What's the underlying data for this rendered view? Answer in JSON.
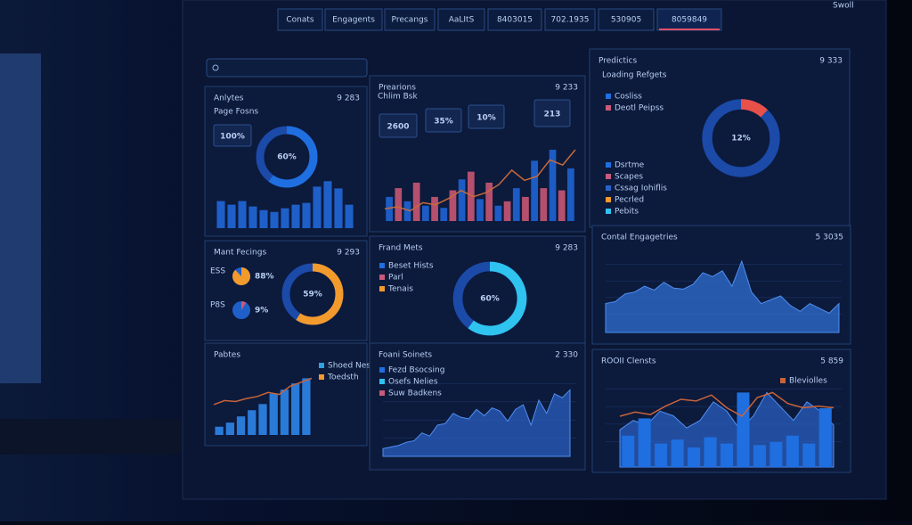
{
  "nav": [
    "Conats",
    "Engagents",
    "Precangs",
    "AaLItS",
    "8403015",
    "702.1935",
    "530905",
    "8059849"
  ],
  "corner": "Swoll",
  "panels": [
    {
      "title": "Anlytes",
      "badge": "9 283",
      "widgets": [
        {
          "type": "text",
          "text": "Page Fosns"
        },
        {
          "type": "stat",
          "text": "100%"
        },
        {
          "type": "donut",
          "value": 60,
          "label": "60%",
          "color": "#1f6fe0"
        },
        {
          "type": "bars",
          "values": [
            30,
            26,
            30,
            24,
            20,
            18,
            22,
            26,
            28,
            46,
            52,
            44,
            26
          ],
          "colors": [
            "#1f5fc8"
          ]
        }
      ]
    },
    {
      "title": "Prearions",
      "badge": "9 233",
      "widgets": [
        {
          "type": "text",
          "text": "Chlim Bsk"
        },
        {
          "type": "stat",
          "text": "2600"
        },
        {
          "type": "stat",
          "text": "35%"
        },
        {
          "type": "stat",
          "text": "10%"
        },
        {
          "type": "stat",
          "text": "213"
        },
        {
          "type": "bars",
          "values": [
            22,
            30,
            18,
            35,
            14,
            22,
            12,
            28,
            38,
            45,
            20,
            35,
            14,
            18,
            30,
            22,
            55,
            30,
            65,
            28,
            48
          ],
          "colors": [
            "#1c5cc4",
            "#b4506e"
          ]
        },
        {
          "type": "line",
          "values": [
            12,
            14,
            10,
            18,
            16,
            22,
            30,
            24,
            28,
            36,
            50,
            40,
            44,
            60,
            55,
            70
          ],
          "color": "#c86a3a"
        }
      ]
    },
    {
      "title": "Predictics",
      "badge": "9 333",
      "widgets": [
        {
          "type": "text",
          "text": "Loading Refgets"
        },
        {
          "type": "legend",
          "items": [
            "Cosliss",
            "Deotl Peipss"
          ],
          "colors": [
            "#1f6fe0",
            "#c85a7a"
          ]
        },
        {
          "type": "donut",
          "value": 12,
          "label": "12%",
          "color": "#e8504a"
        },
        {
          "type": "legend",
          "items": [
            "Dsrtme",
            "Scapes",
            "Cssag Iohiflis",
            "Pecrled",
            "Pebits"
          ],
          "colors": [
            "#1f6fe0",
            "#c85a7a",
            "#2a62c8",
            "#f39a2c",
            "#2fc3f0"
          ]
        }
      ]
    },
    {
      "title": "Mant Fecings",
      "badge": "9 293",
      "widgets": [
        {
          "type": "pie",
          "text": "ESS",
          "value": 88,
          "label": "88%",
          "color": "#f39a2c"
        },
        {
          "type": "pie",
          "text": "P8S",
          "value": 9,
          "label": "9%",
          "color": "#c85a7a"
        },
        {
          "type": "donut",
          "value": 59,
          "label": "59%",
          "color": "#f39a2c"
        }
      ]
    },
    {
      "title": "Frand Mets",
      "badge": "9 283",
      "widgets": [
        {
          "type": "legend",
          "items": [
            "Beset Hists",
            "Parl",
            "Tenais"
          ],
          "colors": [
            "#1f6fe0",
            "#c85a7a",
            "#f39a2c"
          ]
        },
        {
          "type": "donut",
          "value": 60,
          "label": "60%",
          "color": "#2fc3f0"
        }
      ]
    },
    {
      "title": "Contal Engagetries",
      "badge": "5 3035",
      "widgets": [
        {
          "type": "area",
          "values": [
            30,
            32,
            40,
            42,
            48,
            44,
            52,
            46,
            45,
            50,
            62,
            58,
            64,
            48,
            74,
            42,
            30,
            34,
            38,
            28,
            22,
            30,
            25,
            20,
            30
          ],
          "color": "#2f6fd0"
        }
      ]
    },
    {
      "title": "Pabtes",
      "badge": "",
      "widgets": [
        {
          "type": "legend",
          "items": [
            "Shoed Nes",
            "Toedsth"
          ],
          "colors": [
            "#2fa0e0",
            "#f39a2c"
          ]
        },
        {
          "type": "bars",
          "values": [
            8,
            12,
            18,
            24,
            30,
            40,
            44,
            50,
            55
          ],
          "colors": [
            "#2a7ad8"
          ]
        },
        {
          "type": "line",
          "values": [
            30,
            34,
            33,
            36,
            38,
            42,
            40,
            48,
            52,
            56
          ],
          "color": "#c8643a"
        }
      ]
    },
    {
      "title": "Foani Soinets",
      "badge": "2 330",
      "widgets": [
        {
          "type": "legend",
          "items": [
            "Fezd Bsocsing",
            "Osefs Nelies",
            "Suw Badkens"
          ],
          "colors": [
            "#1f6fe0",
            "#2fc3f0",
            "#c85a7a"
          ]
        },
        {
          "type": "area",
          "values": [
            10,
            12,
            14,
            18,
            20,
            30,
            26,
            40,
            42,
            55,
            50,
            48,
            60,
            52,
            62,
            58,
            45,
            60,
            66,
            40,
            72,
            55,
            80,
            75,
            85
          ],
          "color": "#2a5fc0"
        }
      ]
    },
    {
      "title": "ROOII Clensts",
      "badge": "5 859",
      "widgets": [
        {
          "type": "legend",
          "items": [
            "Bleviolles"
          ],
          "colors": [
            "#c8643a"
          ]
        },
        {
          "type": "area",
          "values": [
            40,
            50,
            45,
            60,
            55,
            42,
            50,
            70,
            60,
            40,
            55,
            80,
            65,
            50,
            70,
            60,
            45
          ],
          "color": "#2a5fc0"
        },
        {
          "type": "bars",
          "values": [
            40,
            62,
            30,
            35,
            25,
            38,
            30,
            95,
            28,
            32,
            40,
            30,
            75
          ],
          "colors": [
            "#1f6fe0"
          ]
        },
        {
          "type": "line",
          "values": [
            60,
            65,
            62,
            72,
            80,
            78,
            85,
            70,
            60,
            82,
            88,
            75,
            70,
            72,
            70
          ],
          "color": "#c8643a"
        }
      ]
    }
  ]
}
